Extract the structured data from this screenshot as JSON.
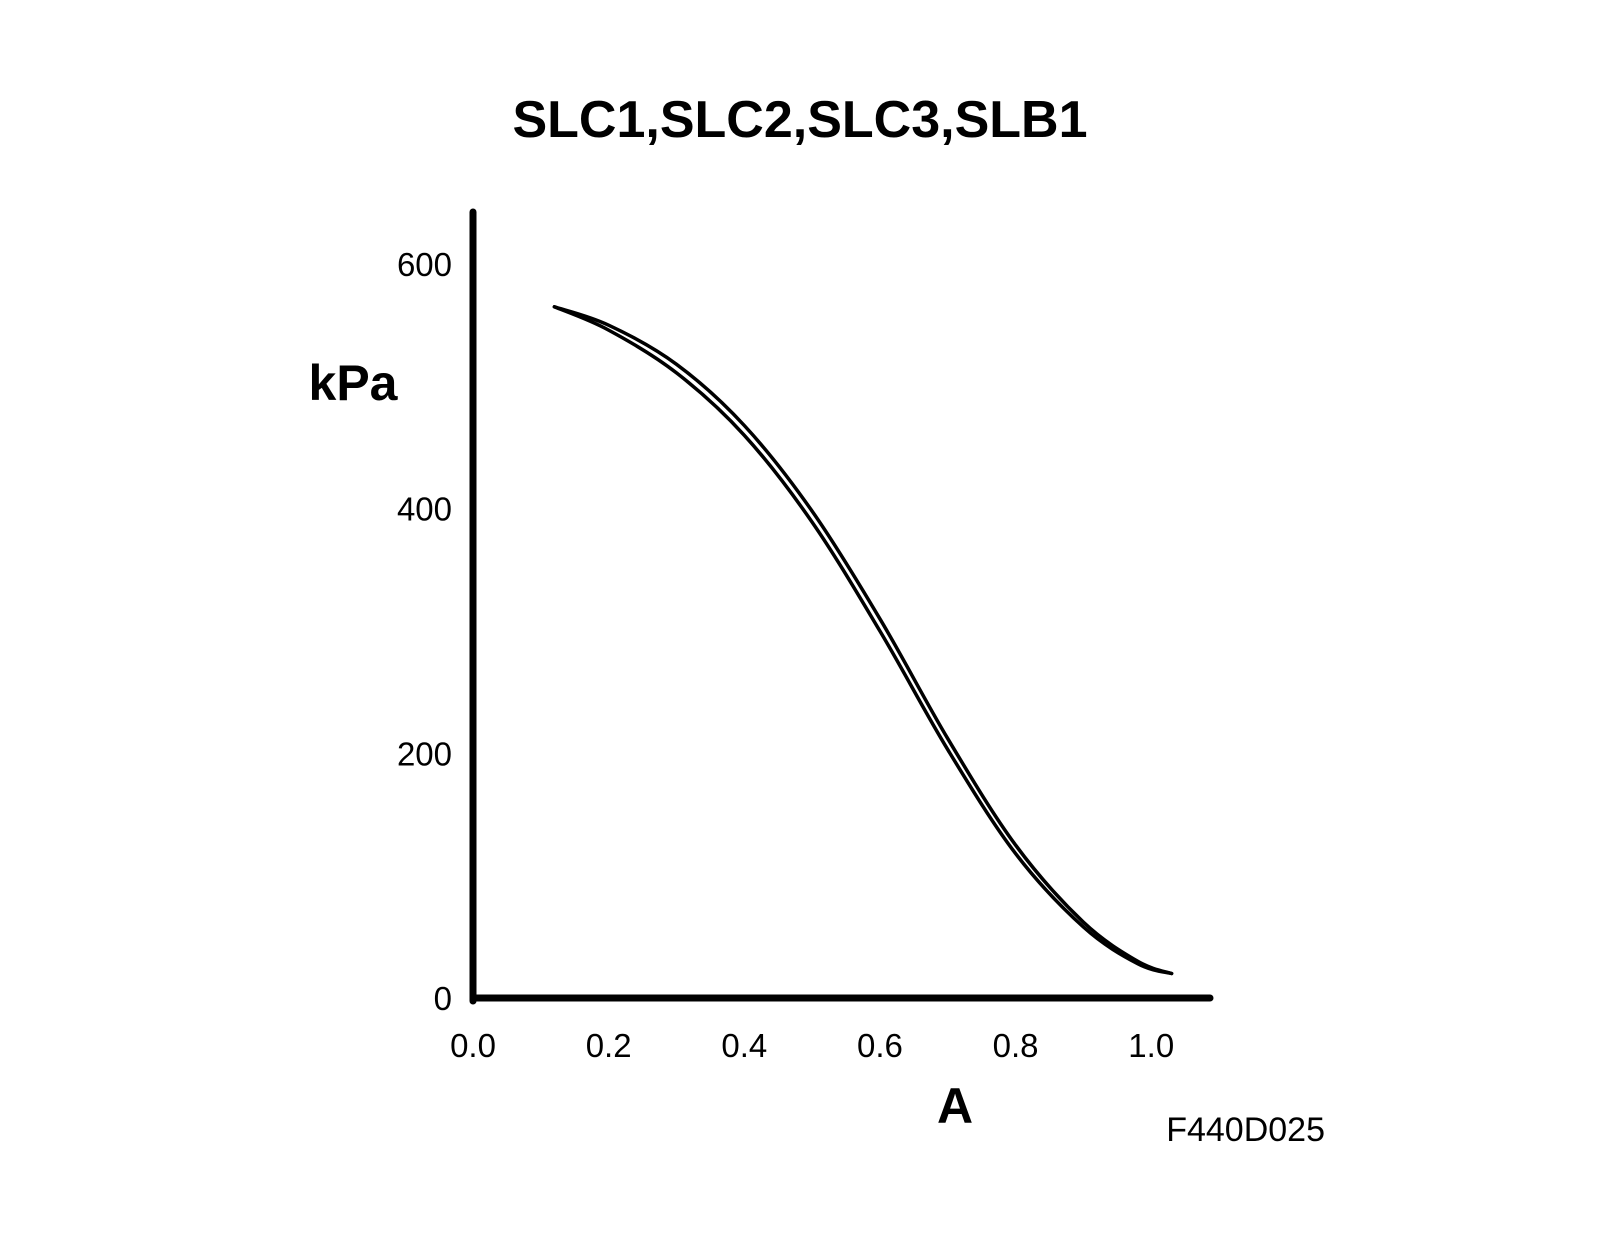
{
  "chart_data": {
    "type": "line",
    "title": "SLC1,SLC2,SLC3,SLB1",
    "xlabel": "A",
    "ylabel": "kPa",
    "xlim": [
      0,
      1.08
    ],
    "ylim": [
      0,
      640
    ],
    "x_ticks": [
      "0.0",
      "0.2",
      "0.4",
      "0.6",
      "0.8",
      "1.0"
    ],
    "y_ticks": [
      "0",
      "200",
      "400",
      "600"
    ],
    "grid": false,
    "legend": "none",
    "line_color": "#000000",
    "series": [
      {
        "x": [
          0.12,
          0.2,
          0.3,
          0.4,
          0.5,
          0.6,
          0.7,
          0.8,
          0.9,
          0.98,
          1.03
        ],
        "y": [
          565,
          550,
          518,
          468,
          398,
          310,
          212,
          125,
          62,
          30,
          20
        ]
      },
      {
        "x": [
          0.12,
          0.2,
          0.3,
          0.4,
          0.5,
          0.6,
          0.7,
          0.8,
          0.9,
          0.98,
          1.03
        ],
        "y": [
          565,
          546,
          511,
          460,
          389,
          300,
          203,
          118,
          58,
          28,
          20
        ]
      }
    ],
    "figure_code": "F440D025"
  }
}
